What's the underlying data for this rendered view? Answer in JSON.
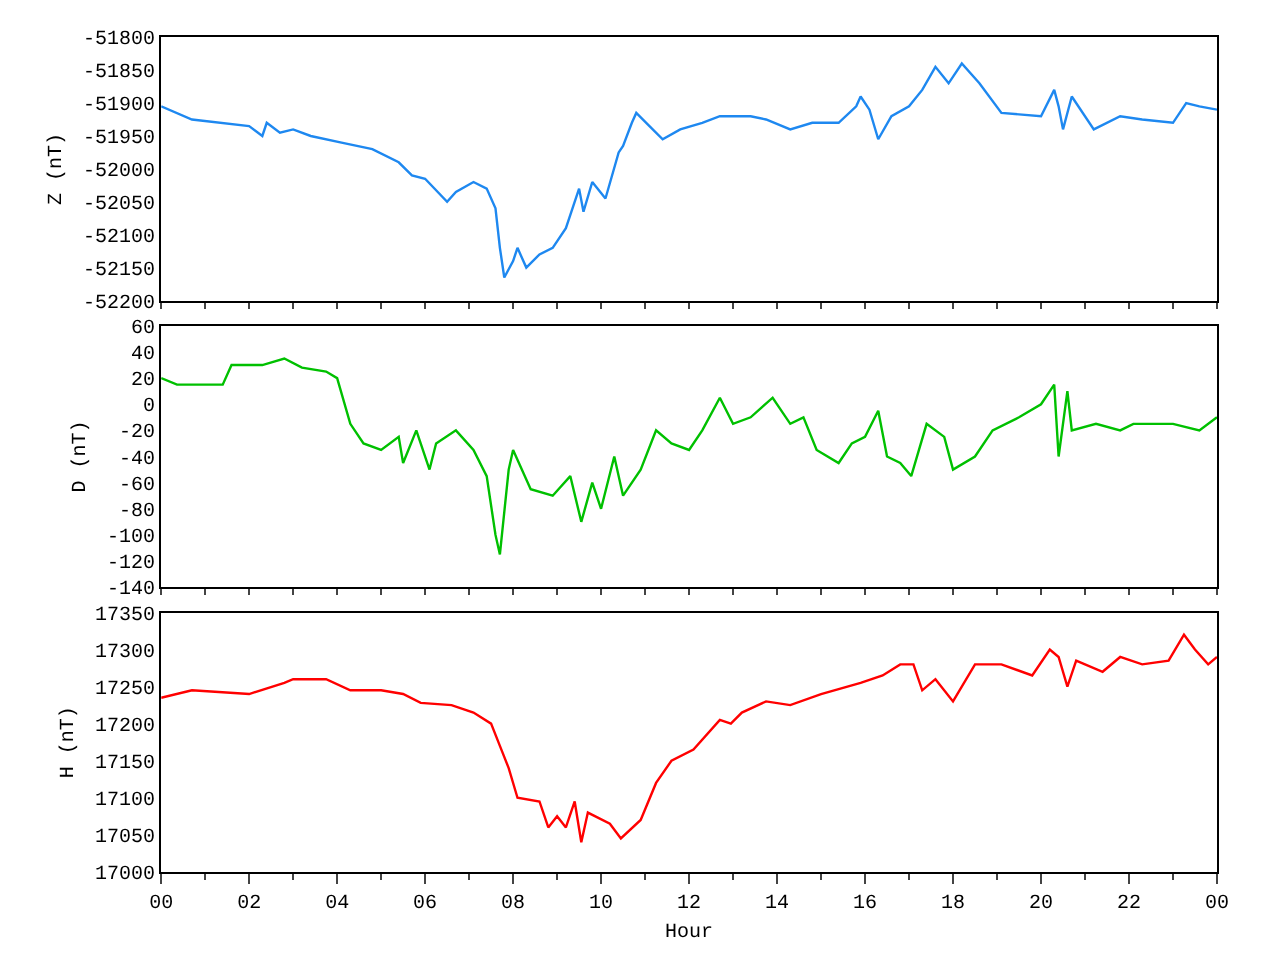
{
  "chart_data": [
    {
      "type": "line",
      "ylabel": "Z (nT)",
      "tick_labels": "y",
      "marker": "none",
      "line_style": "solid",
      "xlim": [
        0,
        24
      ],
      "xticks": [
        {
          "value": 0,
          "label": null
        },
        {
          "value": 2,
          "label": null
        },
        {
          "value": 4,
          "label": null
        },
        {
          "value": 6,
          "label": null
        },
        {
          "value": 8,
          "label": null
        },
        {
          "value": 10,
          "label": null
        },
        {
          "value": 12,
          "label": null
        },
        {
          "value": 14,
          "label": null
        },
        {
          "value": 16,
          "label": null
        },
        {
          "value": 18,
          "label": null
        },
        {
          "value": 20,
          "label": null
        },
        {
          "value": 22,
          "label": null
        },
        {
          "value": 24,
          "label": null
        }
      ],
      "ylim": [
        -52200,
        -51800
      ],
      "yticks": [
        -52200,
        -52150,
        -52100,
        -52050,
        -52000,
        -51950,
        -51900,
        -51850,
        -51800
      ],
      "x": [
        0,
        0.7,
        2,
        2.3,
        2.4,
        2.7,
        3,
        3.4,
        4.1,
        4.8,
        5.4,
        5.7,
        6,
        6.5,
        6.7,
        7.1,
        7.4,
        7.6,
        7.7,
        7.8,
        8,
        8.1,
        8.3,
        8.6,
        8.9,
        9.2,
        9.5,
        9.6,
        9.8,
        10.1,
        10.4,
        10.5,
        10.7,
        10.8,
        11.1,
        11.4,
        11.8,
        12.3,
        12.7,
        13.4,
        13.75,
        14.3,
        14.8,
        15.4,
        15.8,
        15.9,
        16.1,
        16.3,
        16.6,
        17,
        17.3,
        17.6,
        17.9,
        18.2,
        18.6,
        19.1,
        20,
        20.3,
        20.4,
        20.5,
        20.7,
        21.2,
        21.8,
        22.3,
        23,
        23.3,
        23.6,
        24
      ],
      "series": [
        {
          "color": "#1e88f0",
          "values": [
            -51905,
            -51925,
            -51935,
            -51950,
            -51930,
            -51945,
            -51940,
            -51950,
            -51960,
            -51970,
            -51990,
            -52010,
            -52015,
            -52050,
            -52035,
            -52020,
            -52030,
            -52060,
            -52120,
            -52165,
            -52140,
            -52120,
            -52150,
            -52130,
            -52120,
            -52090,
            -52030,
            -52065,
            -52020,
            -52045,
            -51975,
            -51965,
            -51930,
            -51915,
            -51935,
            -51955,
            -51940,
            -51930,
            -51920,
            -51920,
            -51925,
            -51940,
            -51930,
            -51930,
            -51905,
            -51890,
            -51910,
            -51955,
            -51920,
            -51905,
            -51880,
            -51845,
            -51870,
            -51840,
            -51870,
            -51915,
            -51920,
            -51880,
            -51905,
            -51940,
            -51890,
            -51940,
            -51920,
            -51925,
            -51930,
            -51900,
            -51905,
            -51910
          ]
        }
      ]
    },
    {
      "type": "line",
      "ylabel": "D (nT)",
      "tick_labels": "y",
      "marker": "none",
      "line_style": "solid",
      "xlim": [
        0,
        24
      ],
      "xticks": [
        {
          "value": 0,
          "label": null
        },
        {
          "value": 2,
          "label": null
        },
        {
          "value": 4,
          "label": null
        },
        {
          "value": 6,
          "label": null
        },
        {
          "value": 8,
          "label": null
        },
        {
          "value": 10,
          "label": null
        },
        {
          "value": 12,
          "label": null
        },
        {
          "value": 14,
          "label": null
        },
        {
          "value": 16,
          "label": null
        },
        {
          "value": 18,
          "label": null
        },
        {
          "value": 20,
          "label": null
        },
        {
          "value": 22,
          "label": null
        },
        {
          "value": 24,
          "label": null
        }
      ],
      "ylim": [
        -140,
        60
      ],
      "yticks": [
        -140,
        -120,
        -100,
        -80,
        -60,
        -40,
        -20,
        0,
        20,
        40,
        60
      ],
      "x": [
        0,
        0.36,
        0.7,
        1.1,
        1.4,
        1.6,
        2,
        2.3,
        2.8,
        3.2,
        3.75,
        4,
        4.3,
        4.6,
        5,
        5.4,
        5.5,
        5.8,
        6.1,
        6.25,
        6.7,
        7.1,
        7.4,
        7.6,
        7.7,
        7.9,
        8,
        8.4,
        8.9,
        9.3,
        9.55,
        9.8,
        10,
        10.3,
        10.5,
        10.9,
        11.25,
        11.6,
        12,
        12.3,
        12.7,
        13,
        13.4,
        13.9,
        14.3,
        14.6,
        14.9,
        15.4,
        15.7,
        16,
        16.3,
        16.5,
        16.8,
        17.05,
        17.4,
        17.8,
        18,
        18.5,
        18.9,
        19.5,
        20,
        20.3,
        20.4,
        20.6,
        20.7,
        21.25,
        21.8,
        22.1,
        23,
        23.6,
        24
      ],
      "series": [
        {
          "color": "#00c000",
          "values": [
            20,
            15,
            15,
            15,
            15,
            30,
            30,
            30,
            35,
            28,
            25,
            20,
            -15,
            -30,
            -35,
            -25,
            -45,
            -20,
            -50,
            -30,
            -20,
            -35,
            -55,
            -100,
            -115,
            -50,
            -35,
            -65,
            -70,
            -55,
            -90,
            -60,
            -80,
            -40,
            -70,
            -50,
            -20,
            -30,
            -35,
            -20,
            5,
            -15,
            -10,
            5,
            -15,
            -10,
            -35,
            -45,
            -30,
            -25,
            -5,
            -40,
            -45,
            -55,
            -15,
            -25,
            -50,
            -40,
            -20,
            -10,
            0,
            15,
            -40,
            10,
            -20,
            -15,
            -20,
            -15,
            -15,
            -20,
            -10
          ]
        }
      ]
    },
    {
      "type": "line",
      "ylabel": "H (nT)",
      "xlabel": "Hour",
      "marker": "none",
      "line_style": "solid",
      "xlim": [
        0,
        24
      ],
      "xticks": [
        {
          "value": 0,
          "label": "00"
        },
        {
          "value": 2,
          "label": "02"
        },
        {
          "value": 4,
          "label": "04"
        },
        {
          "value": 6,
          "label": "06"
        },
        {
          "value": 8,
          "label": "08"
        },
        {
          "value": 10,
          "label": "10"
        },
        {
          "value": 12,
          "label": "12"
        },
        {
          "value": 14,
          "label": "14"
        },
        {
          "value": 16,
          "label": "16"
        },
        {
          "value": 18,
          "label": "18"
        },
        {
          "value": 20,
          "label": "20"
        },
        {
          "value": 22,
          "label": "22"
        },
        {
          "value": 24,
          "label": "00"
        }
      ],
      "ylim": [
        17000,
        17350
      ],
      "yticks": [
        17000,
        17050,
        17100,
        17150,
        17200,
        17250,
        17300,
        17350
      ],
      "x": [
        0,
        0.7,
        2,
        2.8,
        3,
        3.75,
        4.3,
        5,
        5.5,
        5.9,
        6.6,
        7.1,
        7.5,
        7.7,
        7.9,
        8.1,
        8.6,
        8.8,
        9,
        9.2,
        9.4,
        9.55,
        9.7,
        10.2,
        10.45,
        10.9,
        11.25,
        11.6,
        12.1,
        12.7,
        12.95,
        13.2,
        13.75,
        14.3,
        15,
        15.9,
        16.4,
        16.8,
        17.1,
        17.3,
        17.6,
        18,
        18.5,
        19.1,
        19.8,
        20.2,
        20.4,
        20.6,
        20.8,
        21.4,
        21.8,
        22.3,
        22.9,
        23.25,
        23.5,
        23.8,
        24
      ],
      "series": [
        {
          "color": "#ff0000",
          "values": [
            17235,
            17245,
            17240,
            17255,
            17260,
            17260,
            17245,
            17245,
            17240,
            17228,
            17225,
            17215,
            17200,
            17170,
            17140,
            17100,
            17095,
            17060,
            17075,
            17060,
            17095,
            17040,
            17080,
            17065,
            17045,
            17070,
            17120,
            17150,
            17165,
            17205,
            17200,
            17215,
            17230,
            17225,
            17240,
            17255,
            17265,
            17280,
            17280,
            17245,
            17260,
            17230,
            17280,
            17280,
            17265,
            17300,
            17290,
            17250,
            17285,
            17270,
            17290,
            17280,
            17285,
            17320,
            17300,
            17280,
            17290
          ]
        }
      ]
    }
  ]
}
